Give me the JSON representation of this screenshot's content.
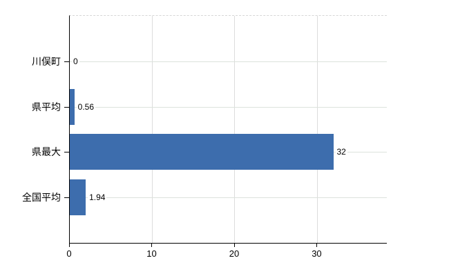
{
  "chart_data": {
    "type": "bar",
    "orientation": "horizontal",
    "title": "",
    "xlabel": "",
    "ylabel": "",
    "categories": [
      "川俣町",
      "県平均",
      "県最大",
      "全国平均"
    ],
    "values": [
      0,
      0.56,
      32,
      1.94
    ],
    "value_labels": [
      "0",
      "0.56",
      "32",
      "1.94"
    ],
    "xticks": [
      0,
      10,
      20,
      30
    ],
    "xtick_labels": [
      "0",
      "10",
      "20",
      "30"
    ],
    "xlim": [
      0,
      38.5
    ],
    "grid": true,
    "legend": "none",
    "bar_color": "#3d6dad",
    "grid_color": "#dcdcdc",
    "axis_color": "#000000",
    "background_color": "#ffffff"
  }
}
